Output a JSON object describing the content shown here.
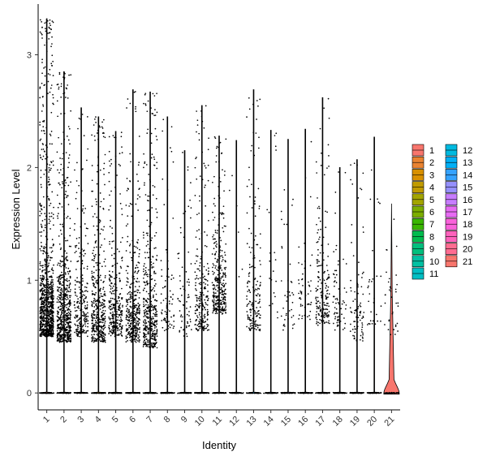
{
  "chart_data": {
    "type": "violin",
    "xlabel": "Identity",
    "ylabel": "Expression Level",
    "categories": [
      "1",
      "2",
      "3",
      "4",
      "5",
      "6",
      "7",
      "8",
      "9",
      "10",
      "11",
      "12",
      "13",
      "14",
      "15",
      "16",
      "17",
      "18",
      "19",
      "20",
      "21"
    ],
    "ylim": [
      -0.15,
      3.45
    ],
    "yticks": [
      0,
      1,
      2,
      3
    ],
    "grid": false,
    "legend_position": "right",
    "colors": [
      "#F8766D",
      "#EA8331",
      "#D89000",
      "#C09B00",
      "#A3A500",
      "#7CAE00",
      "#39B600",
      "#00BB4E",
      "#00BF7D",
      "#00C1A3",
      "#00BFC4",
      "#00BAE0",
      "#00B0F6",
      "#35A2FF",
      "#9590FF",
      "#C77CFF",
      "#E76BF3",
      "#FA62DB",
      "#FF62BC",
      "#FF6C91",
      "#F8766D"
    ],
    "violin_max": [
      3.32,
      2.85,
      2.53,
      2.45,
      2.32,
      2.69,
      2.67,
      2.45,
      2.15,
      2.55,
      2.28,
      2.24,
      2.69,
      2.33,
      2.25,
      2.34,
      2.62,
      2.0,
      2.07,
      2.27,
      1.68
    ],
    "positive_point_counts": [
      950,
      620,
      240,
      420,
      300,
      380,
      430,
      75,
      70,
      230,
      320,
      6,
      170,
      20,
      40,
      50,
      190,
      70,
      90,
      30,
      35
    ],
    "positive_centers": [
      0.75,
      0.7,
      0.75,
      0.7,
      0.75,
      0.7,
      0.65,
      0.8,
      0.75,
      0.8,
      0.95,
      1.1,
      0.8,
      0.9,
      0.8,
      0.9,
      0.85,
      0.8,
      0.7,
      0.85,
      0.75
    ]
  }
}
